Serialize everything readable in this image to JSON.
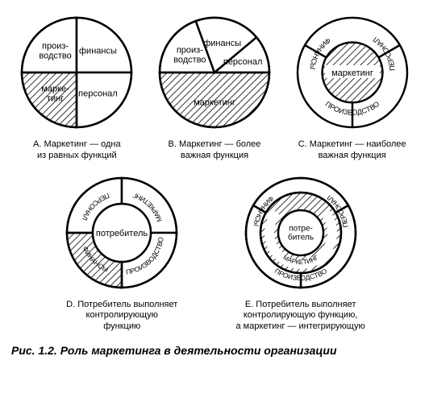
{
  "figure_caption": "Рис. 1.2. Роль маркетинга в деятельности организации",
  "colors": {
    "bg": "#ffffff",
    "stroke": "#000000",
    "text": "#000000",
    "hatch": "pattern"
  },
  "geom": {
    "outer_r": 68,
    "stroke_w": 2.5,
    "D_hole_r": 36,
    "E_mid_r": 50,
    "E_hole_r": 28
  },
  "A": {
    "caption": "A. Маркетинг — одна\nиз равных функций",
    "slices": [
      {
        "label": "произ-\nводство",
        "angle": 90,
        "start": 90,
        "hatched": false
      },
      {
        "label": "финансы",
        "angle": 90,
        "start": 0,
        "hatched": false
      },
      {
        "label": "персонал",
        "angle": 90,
        "start": 270,
        "hatched": false
      },
      {
        "label": "марке-\nтинг",
        "angle": 90,
        "start": 180,
        "hatched": true
      }
    ]
  },
  "B": {
    "caption": "B. Маркетинг — более\nважная функция",
    "slices": [
      {
        "label": "произ-\nводство",
        "angle": 70,
        "start": 110,
        "hatched": false
      },
      {
        "label": "финансы",
        "angle": 70,
        "start": 40,
        "hatched": false
      },
      {
        "label": "персонал",
        "angle": 40,
        "start": 0,
        "hatched": false
      },
      {
        "label": "маркетинг",
        "angle": 180,
        "start": 180,
        "hatched": true
      }
    ]
  },
  "C": {
    "caption": "C. Маркетинг — наиболее\nважная функция",
    "center_label": "маркетинг",
    "center_hatched": true,
    "ring": [
      {
        "label": "ПРОИЗВОДСТВО",
        "start": 30,
        "end": 150
      },
      {
        "label": "ФИНАНСЫ",
        "start": 270,
        "end": 30
      },
      {
        "label": "ПЕРСОНАЛ",
        "start": 150,
        "end": 270
      }
    ]
  },
  "D": {
    "caption": "D. Потребитель выполняет\nконтролирующую\nфункцию",
    "center_label": "потребитель",
    "center_hatched": false,
    "ring": [
      {
        "label": "ПРОИЗВОДСТВО",
        "start": 90,
        "end": 180,
        "hatched": false
      },
      {
        "label": "ФИНАНСЫ",
        "start": 0,
        "end": 90,
        "hatched": false
      },
      {
        "label": "ПЕРСОНАЛ",
        "start": 270,
        "end": 360,
        "hatched": false
      },
      {
        "label": "МАРКЕТИНГ",
        "start": 180,
        "end": 270,
        "hatched": true
      }
    ]
  },
  "E": {
    "caption": "E. Потребитель выполняет\nконтролирующую функцию,\nа маркетинг — интегрирующую",
    "center_label": "потре-\nбитель",
    "mid_label": "МАРКЕТИНГ",
    "mid_hatched": true,
    "ring": [
      {
        "label": "ПРОИЗВОДСТВО",
        "start": 30,
        "end": 150
      },
      {
        "label": "ФИНАНСЫ",
        "start": 270,
        "end": 30
      },
      {
        "label": "ПЕРСОНАЛ",
        "start": 150,
        "end": 270
      }
    ]
  }
}
